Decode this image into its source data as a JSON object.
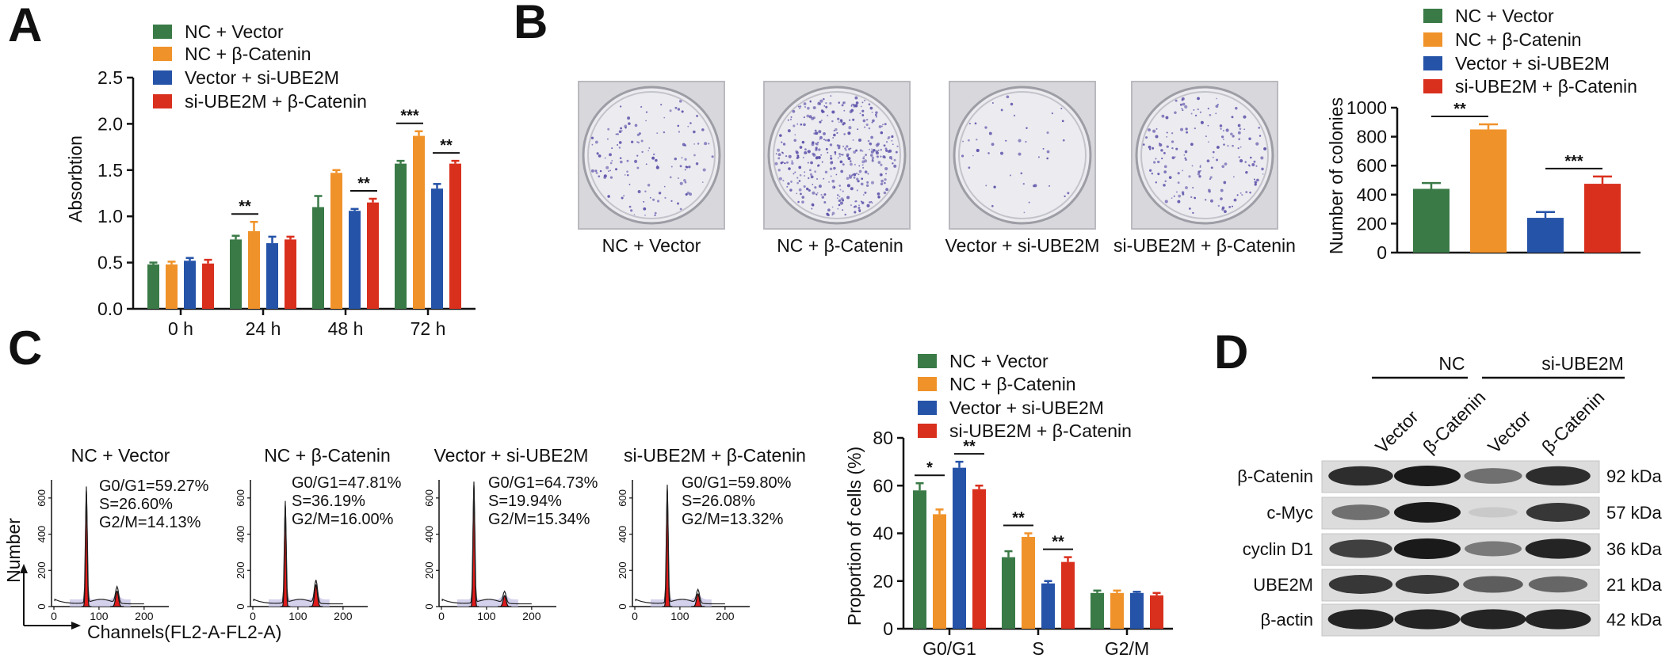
{
  "colors": {
    "nc_vector": "#3a7a47",
    "nc_bcat": "#f0922a",
    "vec_si": "#2553a8",
    "si_bcat": "#d9301e",
    "hist_fill": "#e01b1b",
    "hist_bg": "#c9c6e8",
    "dish": "#5a4fa8"
  },
  "legend": [
    "NC + Vector",
    "NC + β-Catenin",
    "Vector + si-UBE2M",
    "si-UBE2M + β-Catenin"
  ],
  "panels": {
    "a": "A",
    "b": "B",
    "c": "C",
    "d": "D"
  },
  "chart_data": [
    {
      "id": "A",
      "type": "bar",
      "ylabel": "Absorbtion",
      "xlabel": "",
      "ylim": [
        0,
        2.5
      ],
      "yticks": [
        "0.0",
        "0.5",
        "1.0",
        "1.5",
        "2.0",
        "2.5"
      ],
      "categories": [
        "0 h",
        "24 h",
        "48 h",
        "72 h"
      ],
      "series": [
        {
          "name": "NC + Vector",
          "values": [
            0.48,
            0.75,
            1.1,
            1.57
          ],
          "errors": [
            0.02,
            0.04,
            0.12,
            0.03
          ]
        },
        {
          "name": "NC + β-Catenin",
          "values": [
            0.48,
            0.84,
            1.47,
            1.87
          ],
          "errors": [
            0.03,
            0.1,
            0.03,
            0.05
          ]
        },
        {
          "name": "Vector + si-UBE2M",
          "values": [
            0.52,
            0.71,
            1.06,
            1.3
          ],
          "errors": [
            0.03,
            0.07,
            0.02,
            0.05
          ]
        },
        {
          "name": "si-UBE2M + β-Catenin",
          "values": [
            0.49,
            0.75,
            1.15,
            1.57
          ],
          "errors": [
            0.04,
            0.03,
            0.04,
            0.03
          ]
        }
      ],
      "significance": [
        {
          "category": 1,
          "label": "**",
          "from": 0,
          "to": 1
        },
        {
          "category": 2,
          "label": "**",
          "from": 2,
          "to": 3
        },
        {
          "category": 3,
          "label": "***",
          "from": 0,
          "to": 1
        },
        {
          "category": 3,
          "label": "**",
          "from": 2,
          "to": 3
        }
      ]
    },
    {
      "id": "B",
      "type": "bar",
      "ylabel": "Number of colonies",
      "ylim": [
        0,
        1000
      ],
      "yticks": [
        "0",
        "200",
        "400",
        "600",
        "800",
        "1000"
      ],
      "categories": [
        "NC + Vector",
        "NC + β-Catenin",
        "Vector + si-UBE2M",
        "si-UBE2M + β-Catenin"
      ],
      "values": [
        440,
        850,
        240,
        475
      ],
      "errors": [
        40,
        35,
        40,
        50
      ],
      "significance": [
        {
          "label": "**",
          "from": 0,
          "to": 1
        },
        {
          "label": "***",
          "from": 2,
          "to": 3
        }
      ]
    },
    {
      "id": "C",
      "type": "bar",
      "ylabel": "Proportion of cells (%)",
      "ylim": [
        0,
        80
      ],
      "yticks": [
        "0",
        "20",
        "40",
        "60",
        "80"
      ],
      "categories": [
        "G0/G1",
        "S",
        "G2/M"
      ],
      "series": [
        {
          "name": "NC + Vector",
          "values": [
            58,
            30,
            15
          ],
          "errors": [
            3,
            2.5,
            1
          ]
        },
        {
          "name": "NC + β-Catenin",
          "values": [
            48,
            38.5,
            15
          ],
          "errors": [
            2,
            1.5,
            1
          ]
        },
        {
          "name": "Vector + si-UBE2M",
          "values": [
            67.5,
            19,
            15
          ],
          "errors": [
            2.5,
            1,
            0.5
          ]
        },
        {
          "name": "si-UBE2M + β-Catenin",
          "values": [
            58.5,
            28,
            14
          ],
          "errors": [
            1.5,
            2,
            1
          ]
        }
      ],
      "significance": [
        {
          "category": 0,
          "label": "*",
          "from": 0,
          "to": 1
        },
        {
          "category": 0,
          "label": "**",
          "from": 2,
          "to": 3
        },
        {
          "category": 1,
          "label": "**",
          "from": 0,
          "to": 1
        },
        {
          "category": 1,
          "label": "**",
          "from": 2,
          "to": 3
        }
      ]
    }
  ],
  "colonies": {
    "labels": [
      "NC + Vector",
      "NC + β-Catenin",
      "Vector + si-UBE2M",
      "si-UBE2M + β-Catenin"
    ],
    "density": [
      0.35,
      1.0,
      0.12,
      0.45
    ]
  },
  "flow": {
    "ylabel": "Number",
    "xlabel": "Channels(FL2-A-FL2-A)",
    "yticks": [
      "0",
      "200",
      "400",
      "600"
    ],
    "xticks": [
      "0",
      "100",
      "200"
    ],
    "panels": [
      {
        "title": "NC + Vector",
        "stats": [
          "G0/G1=59.27%",
          "S=26.60%",
          "G2/M=14.13%"
        ],
        "g1": 640,
        "g2": 85
      },
      {
        "title": "NC + β-Catenin",
        "stats": [
          "G0/G1=47.81%",
          "S=36.19%",
          "G2/M=16.00%"
        ],
        "g1": 560,
        "g2": 120
      },
      {
        "title": "Vector + si-UBE2M",
        "stats": [
          "G0/G1=64.73%",
          "S=19.94%",
          "G2/M=15.34%"
        ],
        "g1": 670,
        "g2": 60
      },
      {
        "title": "si-UBE2M + β-Catenin",
        "stats": [
          "G0/G1=59.80%",
          "S=26.08%",
          "G2/M=13.32%"
        ],
        "g1": 650,
        "g2": 70
      }
    ]
  },
  "western": {
    "groups": [
      "NC",
      "si-UBE2M"
    ],
    "lanes": [
      "Vector",
      "β-Catenin",
      "Vector",
      "β-Catenin"
    ],
    "proteins": [
      {
        "name": "β-Catenin",
        "size": "92 kDa",
        "intensity": [
          0.9,
          1.0,
          0.55,
          0.9
        ]
      },
      {
        "name": "c-Myc",
        "size": "57 kDa",
        "intensity": [
          0.55,
          1.0,
          0.08,
          0.85
        ]
      },
      {
        "name": "cyclin D1",
        "size": "36 kDa",
        "intensity": [
          0.8,
          1.0,
          0.5,
          0.95
        ]
      },
      {
        "name": "UBE2M",
        "size": "21 kDa",
        "intensity": [
          0.85,
          0.85,
          0.65,
          0.6
        ]
      },
      {
        "name": "β-actin",
        "size": "42 kDa",
        "intensity": [
          0.95,
          0.95,
          0.95,
          0.95
        ]
      }
    ]
  }
}
